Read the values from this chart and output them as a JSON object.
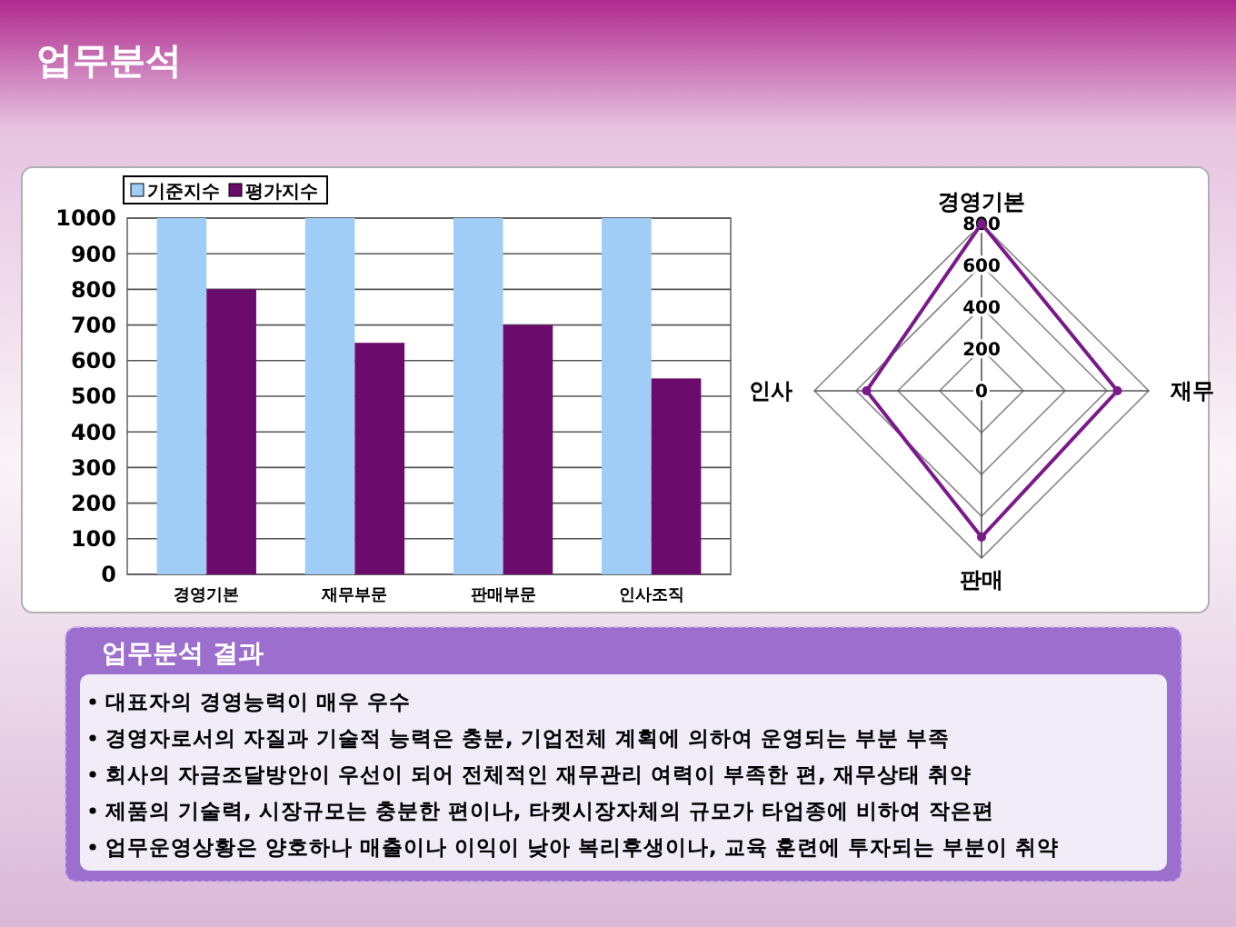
{
  "chart_data": [
    {
      "type": "bar",
      "title": "업무분석",
      "categories": [
        "경영기본",
        "재무부문",
        "판매부문",
        "인사조직"
      ],
      "series": [
        {
          "name": "기준지수",
          "color": "#9fcdf5",
          "values": [
            1000,
            1000,
            1000,
            1000
          ]
        },
        {
          "name": "평가지수",
          "color": "#6b0b6b",
          "values": [
            800,
            650,
            700,
            550
          ]
        }
      ],
      "ylim": [
        0,
        1000
      ],
      "yticks": [
        0,
        100,
        200,
        300,
        400,
        500,
        600,
        700,
        800,
        900,
        1000
      ],
      "grid": "y",
      "legend": "top left"
    },
    {
      "type": "radar",
      "categories": [
        "경영기본",
        "재무",
        "판매",
        "인사"
      ],
      "series": [
        {
          "color": "#7a1a8a",
          "values": [
            800,
            650,
            700,
            550
          ]
        }
      ],
      "ylim": [
        0,
        800
      ],
      "yticks": [
        0,
        200,
        400,
        600,
        800
      ],
      "grid": true,
      "marker": "circle"
    },
    {
      "type": "other",
      "title": "업무분석 결과",
      "annotations": [
        "대표자의 경영능력이 매우 우수",
        "경영자로서의 자질과 기술적 능력은 충분, 기업전체 계획에 의하여 운영되는 부분 부족",
        "회사의 자금조달방안이 우선이 되어 전체적인 재무관리 여력이 부족한 편, 재무상태 취약",
        "제품의 기술력, 시장규모는 충분한 편이나, 타켓시장자체의 규모가 타업종에 비하여 작은편",
        "업무운영상황은 양호하나 매출이나 이익이 낮아 복리후생이나, 교육 훈련에 투자되는 부분이 취약"
      ]
    }
  ]
}
